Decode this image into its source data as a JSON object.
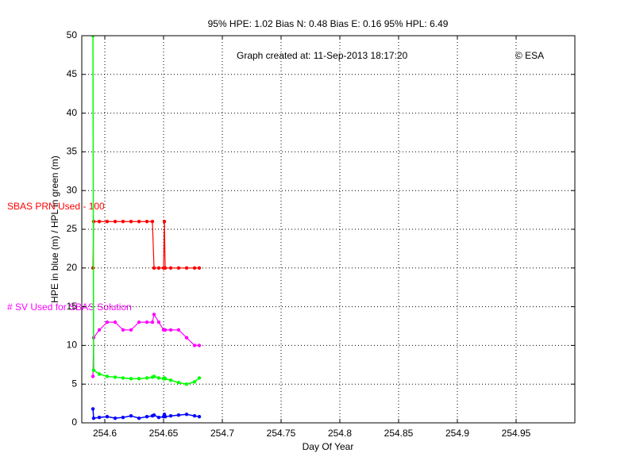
{
  "chart_data": {
    "type": "line",
    "title": "95% HPE: 1.02  Bias N: 0.48  Bias E: 0.16  95% HPL: 6.49",
    "x_label": "Day Of Year",
    "y_label": "HPE in blue (m) / HPL in green (m)",
    "annotations": [
      "Graph created at: 11-Sep-2013 18:17:20",
      "© ESA",
      "SBAS PRN Used - 100",
      "# SV Used for SBAS Solution"
    ],
    "x": [
      254.5899,
      254.5905,
      254.5953,
      254.602,
      254.6088,
      254.6155,
      254.6223,
      254.6291,
      254.6358,
      254.6405,
      254.6419,
      254.6459,
      254.65,
      254.6507,
      254.6514,
      254.6561,
      254.6628,
      254.6696,
      254.6764,
      254.6804
    ],
    "series": [
      {
        "color": "#ff0000",
        "values": [
          20,
          26,
          26,
          26,
          26,
          26,
          26,
          26,
          26,
          26,
          20,
          20,
          20,
          26,
          20,
          20,
          20,
          20,
          20,
          20
        ]
      },
      {
        "color": "#ff00ff",
        "values": [
          6,
          11,
          12,
          13,
          13,
          12,
          12,
          13,
          13,
          13,
          14,
          13,
          12,
          12,
          12,
          12,
          12,
          11,
          10,
          10
        ]
      },
      {
        "color": "#00ff00",
        "values": [
          50,
          6.8,
          6.3,
          6.0,
          5.9,
          5.8,
          5.7,
          5.7,
          5.8,
          5.9,
          6.0,
          5.8,
          5.7,
          5.8,
          5.7,
          5.5,
          5.2,
          5.0,
          5.3,
          5.8
        ]
      },
      {
        "color": "#0000ff",
        "values": [
          1.8,
          0.6,
          0.7,
          0.8,
          0.6,
          0.7,
          0.9,
          0.6,
          0.8,
          0.9,
          1.0,
          0.7,
          0.8,
          1.1,
          0.8,
          0.9,
          1.0,
          1.1,
          0.9,
          0.8
        ]
      }
    ],
    "xlim": [
      254.5804,
      255.0
    ],
    "xticks": [
      254.6,
      254.65,
      254.7,
      254.75,
      254.8,
      254.85,
      254.9,
      254.95
    ],
    "ylim": [
      0,
      50
    ],
    "yticks": [
      0,
      5,
      10,
      15,
      20,
      25,
      30,
      35,
      40,
      45,
      50
    ],
    "grid": true
  }
}
